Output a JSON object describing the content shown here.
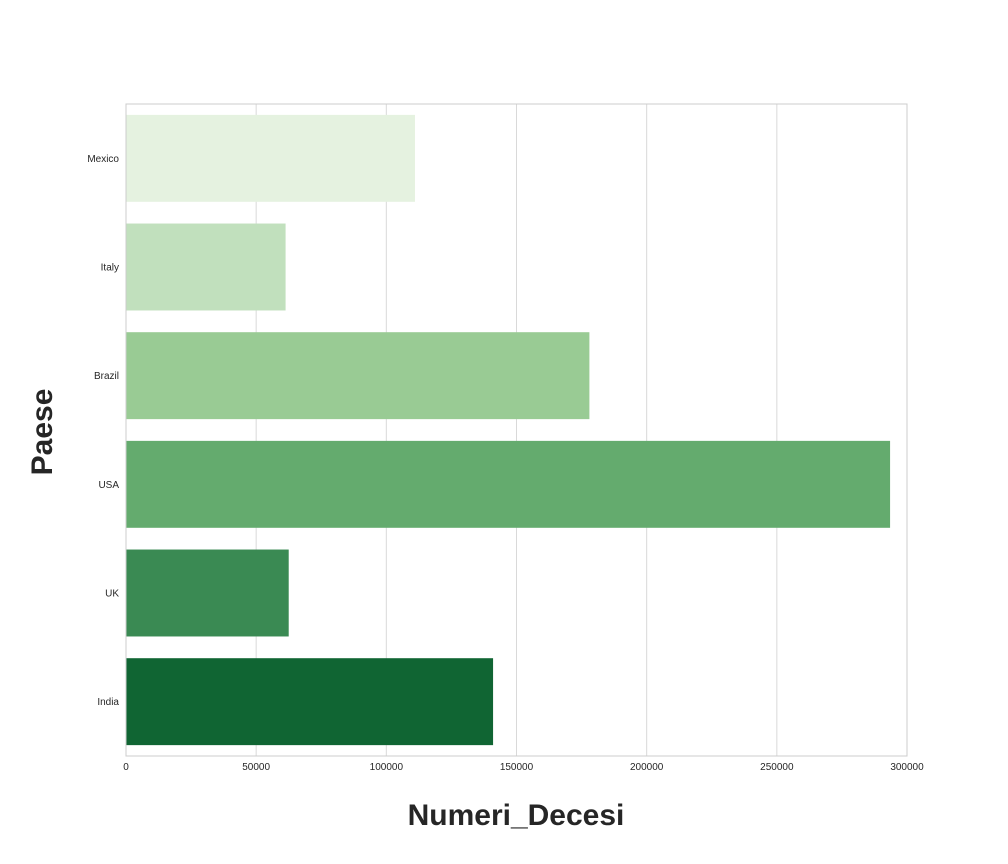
{
  "chart_data": {
    "type": "bar",
    "orientation": "horizontal",
    "categories": [
      "Mexico",
      "Italy",
      "Brazil",
      "USA",
      "UK",
      "India"
    ],
    "values": [
      111000,
      61300,
      178000,
      293500,
      62500,
      141000
    ],
    "colors": [
      "#e5f2e0",
      "#c1e0bd",
      "#99cb94",
      "#64ab6e",
      "#3a8a53",
      "#106533"
    ],
    "xlabel": "Numeri_Decesi",
    "ylabel": "Paese",
    "xlim": [
      0,
      300000
    ],
    "xticks": [
      "0",
      "50000",
      "100000",
      "150000",
      "200000",
      "250000",
      "300000"
    ],
    "grid": "vertical"
  }
}
